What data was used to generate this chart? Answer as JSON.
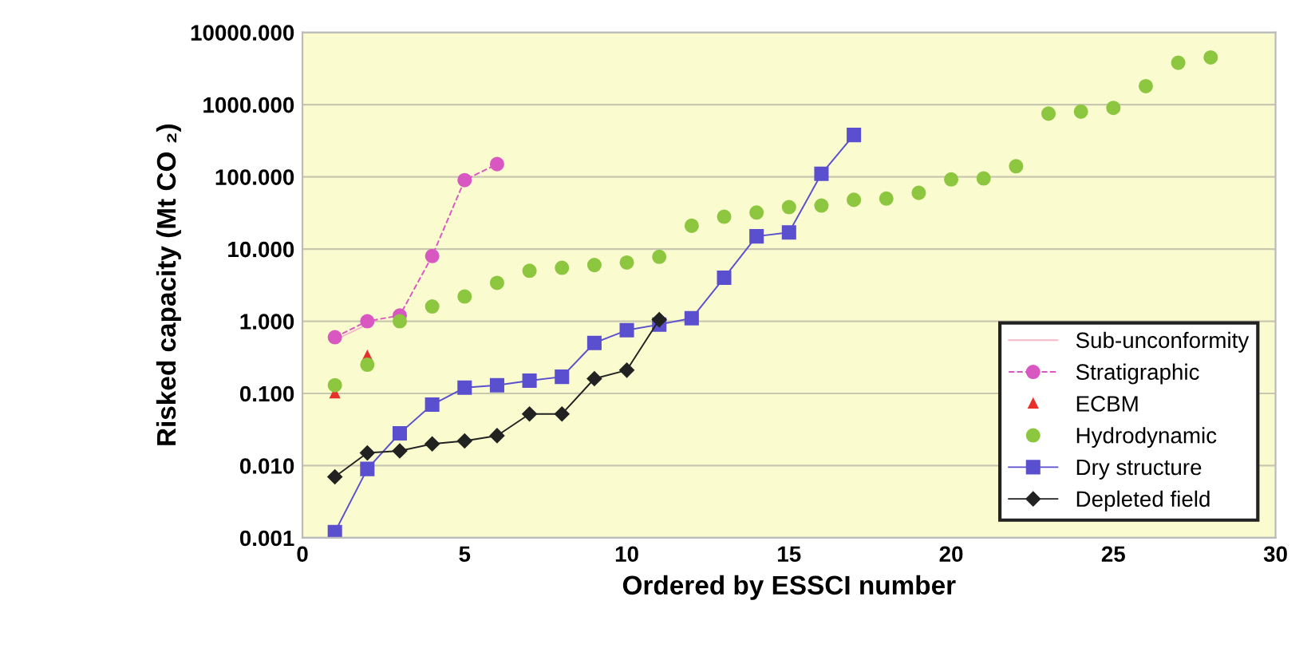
{
  "chart_data": {
    "type": "scatter",
    "xlabel": "Ordered by ESSCI number",
    "ylabel": "Risked capacity (Mt CO ₂)",
    "log": "y",
    "xlim": [
      0,
      30
    ],
    "xticks": [
      0,
      5,
      10,
      15,
      20,
      25,
      30
    ],
    "ylim": [
      0.001,
      10000
    ],
    "yticks": [
      {
        "value": 0.001,
        "label": "0.001"
      },
      {
        "value": 0.01,
        "label": "0.010"
      },
      {
        "value": 0.1,
        "label": "0.100"
      },
      {
        "value": 1,
        "label": "1.000"
      },
      {
        "value": 10,
        "label": "10.000"
      },
      {
        "value": 100,
        "label": "100.000"
      },
      {
        "value": 1000,
        "label": "1000.000"
      },
      {
        "value": 10000,
        "label": "10000.000"
      }
    ],
    "grid": "y",
    "legend": "bottom right",
    "series": [
      {
        "name": "Sub-unconformity",
        "type": "line",
        "color": "#f4b8c8",
        "marker": "none",
        "line_style": "solid",
        "x": [
          1,
          2
        ],
        "values": [
          0.55,
          0.9
        ]
      },
      {
        "name": "Stratigraphic",
        "type": "line",
        "color": "#d957c0",
        "marker": "circle",
        "line_style": "dashed",
        "x": [
          1,
          2,
          3,
          4,
          5,
          6
        ],
        "values": [
          0.6,
          1.0,
          1.2,
          8,
          90,
          150
        ]
      },
      {
        "name": "ECBM",
        "color": "#e8302a",
        "marker": "triangle",
        "x": [
          1,
          2
        ],
        "values": [
          0.1,
          0.33
        ]
      },
      {
        "name": "Hydrodynamic",
        "color": "#8dc63f",
        "marker": "circle",
        "x": [
          1,
          2,
          3,
          4,
          5,
          6,
          7,
          8,
          9,
          10,
          11,
          12,
          13,
          14,
          15,
          16,
          17,
          18,
          19,
          20,
          21,
          22,
          23,
          24,
          25,
          26,
          27,
          28
        ],
        "values": [
          0.13,
          0.25,
          1.0,
          1.6,
          2.2,
          3.4,
          5,
          5.5,
          6,
          6.5,
          7.8,
          21,
          28,
          32,
          38,
          40,
          48,
          50,
          60,
          92,
          95,
          140,
          750,
          800,
          900,
          1800,
          3800,
          4500
        ]
      },
      {
        "name": "Dry structure",
        "type": "line",
        "color": "#5a4fcf",
        "marker": "square",
        "line_style": "solid",
        "x": [
          1,
          2,
          3,
          4,
          5,
          6,
          7,
          8,
          9,
          10,
          11,
          12,
          13,
          14,
          15,
          16,
          17
        ],
        "values": [
          0.0012,
          0.009,
          0.028,
          0.07,
          0.12,
          0.13,
          0.15,
          0.17,
          0.5,
          0.75,
          0.9,
          1.1,
          4,
          15,
          17,
          110,
          380
        ]
      },
      {
        "name": "Depleted field",
        "type": "line",
        "color": "#222222",
        "marker": "diamond",
        "line_style": "solid",
        "x": [
          1,
          2,
          3,
          4,
          5,
          6,
          7,
          8,
          9,
          10,
          11
        ],
        "values": [
          0.007,
          0.015,
          0.016,
          0.02,
          0.022,
          0.026,
          0.052,
          0.052,
          0.16,
          0.21,
          1.05
        ]
      }
    ]
  }
}
